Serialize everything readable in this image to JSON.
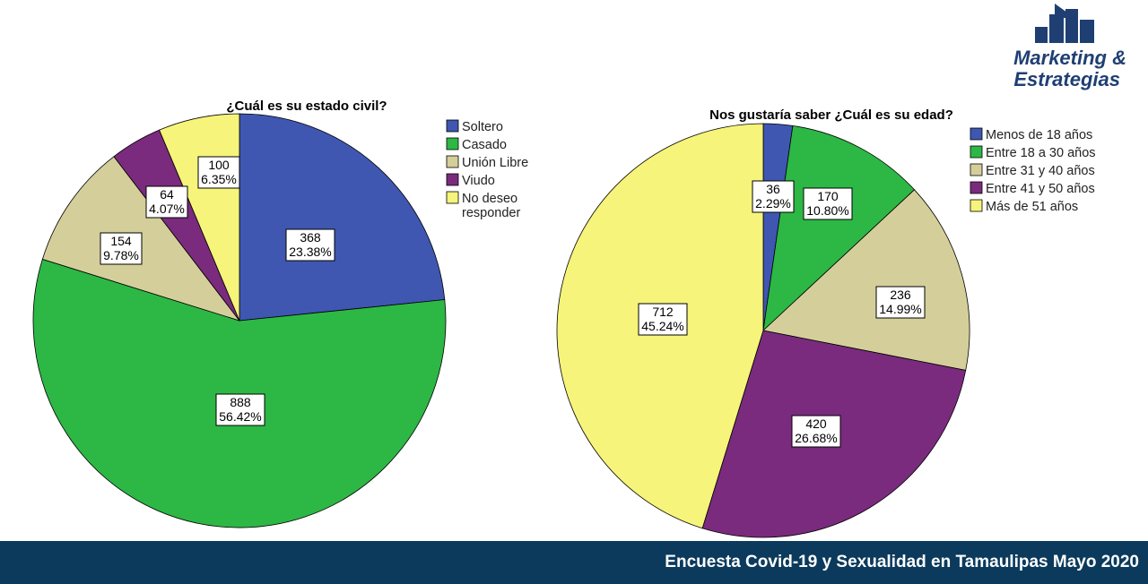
{
  "logo": {
    "line1": "Marketing &",
    "line2": "Estrategias"
  },
  "footer": {
    "text": "Encuesta Covid-19 y Sexualidad en Tamaulipas Mayo 2020"
  },
  "chart_data": [
    {
      "type": "pie",
      "title": "¿Cuál es su estado civil?",
      "legend_position": "top-right",
      "slices": [
        {
          "category": "Soltero",
          "legend_label": [
            "Soltero"
          ],
          "value": 368,
          "percent": "23.38%",
          "color": "#3f57b0"
        },
        {
          "category": "Casado",
          "legend_label": [
            "Casado"
          ],
          "value": 888,
          "percent": "56.42%",
          "color": "#2db745"
        },
        {
          "category": "Unión Libre",
          "legend_label": [
            "Unión Libre"
          ],
          "value": 154,
          "percent": "9.78%",
          "color": "#d4cf9a"
        },
        {
          "category": "Viudo",
          "legend_label": [
            "Viudo"
          ],
          "value": 64,
          "percent": "4.07%",
          "color": "#7a2b7e"
        },
        {
          "category": "No deseo responder",
          "legend_label": [
            "No deseo",
            "responder"
          ],
          "value": 100,
          "percent": "6.35%",
          "color": "#f6f47a"
        }
      ]
    },
    {
      "type": "pie",
      "title": "Nos gustaría saber ¿Cuál es su edad?",
      "legend_position": "top-right",
      "slices": [
        {
          "category": "Menos de 18 años",
          "legend_label": [
            "Menos de 18 años"
          ],
          "value": 36,
          "percent": "2.29%",
          "color": "#3f57b0"
        },
        {
          "category": "Entre 18 a 30 años",
          "legend_label": [
            "Entre 18 a 30 años"
          ],
          "value": 170,
          "percent": "10.80%",
          "color": "#2db745"
        },
        {
          "category": "Entre 31 y 40 años",
          "legend_label": [
            "Entre 31 y 40 años"
          ],
          "value": 236,
          "percent": "14.99%",
          "color": "#d4cf9a"
        },
        {
          "category": "Entre 41 y 50 años",
          "legend_label": [
            "Entre 41 y 50 años"
          ],
          "value": 420,
          "percent": "26.68%",
          "color": "#7a2b7e"
        },
        {
          "category": "Más de 51 años",
          "legend_label": [
            "Más de 51 años"
          ],
          "value": 712,
          "percent": "45.24%",
          "color": "#f6f47a"
        }
      ]
    }
  ]
}
